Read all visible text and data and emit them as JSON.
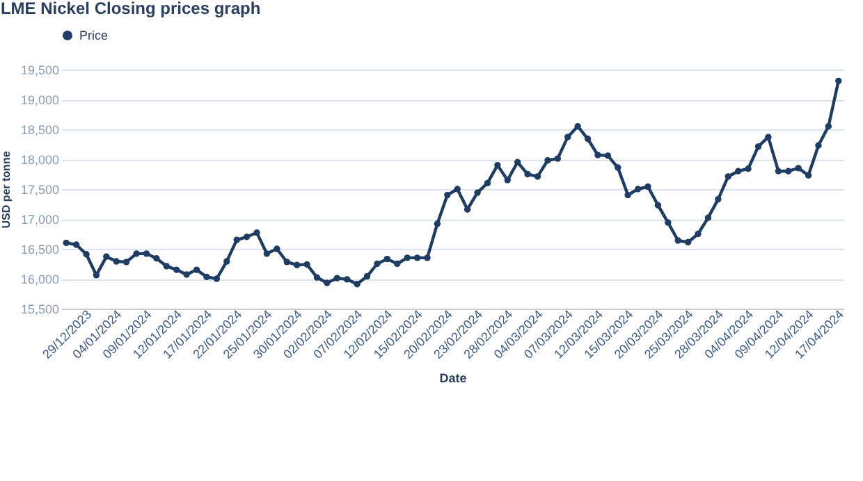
{
  "chart_data": {
    "type": "line",
    "title": "LME Nickel Closing prices graph",
    "xlabel": "Date",
    "ylabel": "USD per tonne",
    "categories": [
      "29/12/2023",
      null,
      null,
      "04/01/2024",
      null,
      null,
      "09/01/2024",
      null,
      null,
      "12/01/2024",
      null,
      null,
      "17/01/2024",
      null,
      null,
      "22/01/2024",
      null,
      null,
      "25/01/2024",
      null,
      null,
      "30/01/2024",
      null,
      null,
      "02/02/2024",
      null,
      null,
      "07/02/2024",
      null,
      null,
      "12/02/2024",
      null,
      null,
      "15/02/2024",
      null,
      null,
      "20/02/2024",
      null,
      null,
      "23/02/2024",
      null,
      null,
      "28/02/2024",
      null,
      null,
      "04/03/2024",
      null,
      null,
      "07/03/2024",
      null,
      null,
      "12/03/2024",
      null,
      null,
      "15/03/2024",
      null,
      null,
      "20/03/2024",
      null,
      null,
      "25/03/2024",
      null,
      null,
      "28/03/2024",
      null,
      null,
      "04/04/2024",
      null,
      null,
      "09/04/2024",
      null,
      null,
      "12/04/2024",
      null,
      null,
      "17/04/2024",
      null,
      null
    ],
    "series": [
      {
        "name": "Price",
        "color": "#1f3d63",
        "values": [
          16600,
          16570,
          16410,
          16060,
          16370,
          16290,
          16280,
          16420,
          16420,
          16340,
          16210,
          16150,
          16070,
          16150,
          16030,
          16000,
          16290,
          16650,
          16700,
          16770,
          16420,
          16500,
          16280,
          16230,
          16240,
          16020,
          15930,
          16010,
          15990,
          15910,
          16040,
          16250,
          16330,
          16250,
          16350,
          16350,
          16350,
          16920,
          17400,
          17500,
          17160,
          17440,
          17600,
          17900,
          17650,
          17950,
          17750,
          17710,
          17980,
          18010,
          18370,
          18550,
          18340,
          18070,
          18060,
          17860,
          17400,
          17500,
          17540,
          17230,
          16940,
          16640,
          16610,
          16750,
          17020,
          17330,
          17710,
          17800,
          17840,
          18210,
          18370,
          17800,
          17800,
          17850,
          17730,
          18230,
          18550,
          19310
        ]
      }
    ],
    "ylim": [
      15500,
      19500
    ],
    "yticks": [
      {
        "value": 15500,
        "label": "15,500"
      },
      {
        "value": 16000,
        "label": "16,000"
      },
      {
        "value": 16500,
        "label": "16,500"
      },
      {
        "value": 17000,
        "label": "17,000"
      },
      {
        "value": 17500,
        "label": "17,500"
      },
      {
        "value": 18000,
        "label": "18,000"
      },
      {
        "value": 18500,
        "label": "18,500"
      },
      {
        "value": 19000,
        "label": "19,000"
      },
      {
        "value": 19500,
        "label": "19,500"
      }
    ],
    "grid": "y",
    "legend": "top left",
    "marker": "circle",
    "line_style": "solid"
  }
}
